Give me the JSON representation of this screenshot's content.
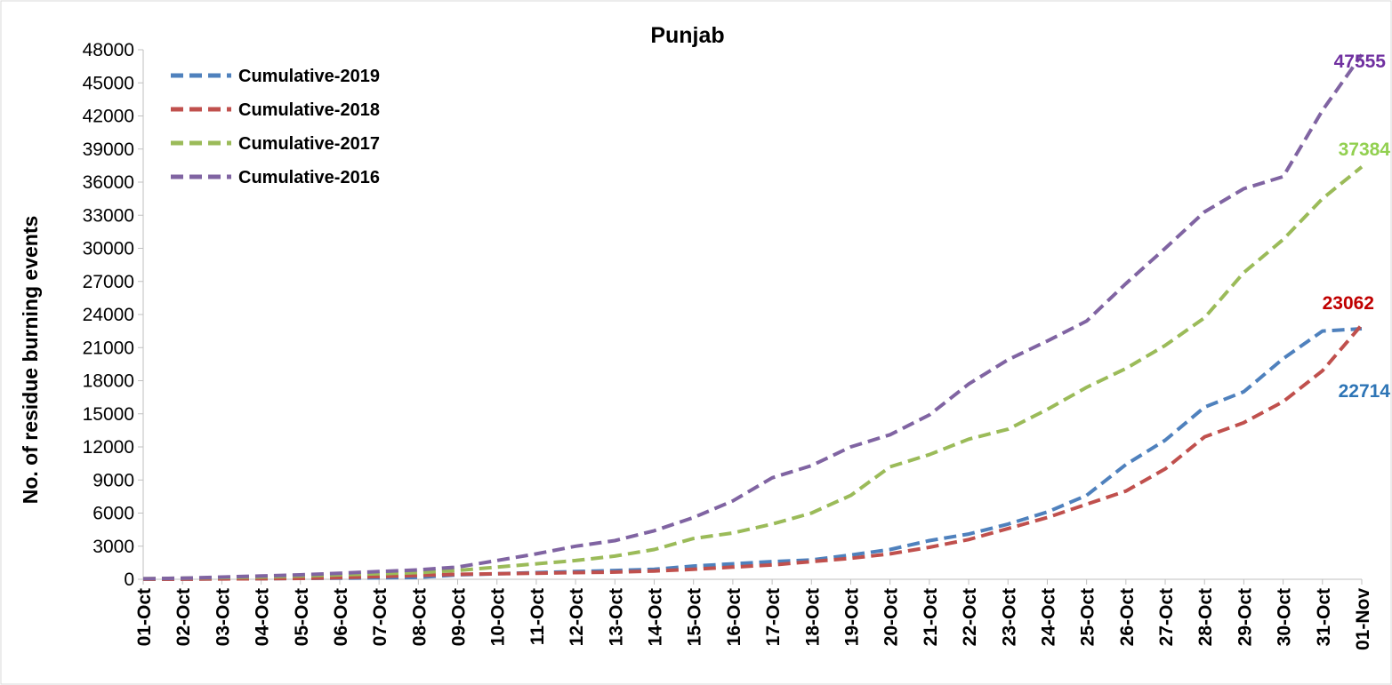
{
  "chart_data": {
    "type": "line",
    "title": "Punjab",
    "xlabel": "",
    "ylabel": "No. of residue burning events",
    "ylim": [
      0,
      48000
    ],
    "yticks": [
      0,
      3000,
      6000,
      9000,
      12000,
      15000,
      18000,
      21000,
      24000,
      27000,
      30000,
      33000,
      36000,
      39000,
      42000,
      45000,
      48000
    ],
    "categories": [
      "01-Oct",
      "02-Oct",
      "03-Oct",
      "04-Oct",
      "05-Oct",
      "06-Oct",
      "07-Oct",
      "08-Oct",
      "09-Oct",
      "10-Oct",
      "11-Oct",
      "12-Oct",
      "13-Oct",
      "14-Oct",
      "15-Oct",
      "16-Oct",
      "17-Oct",
      "18-Oct",
      "19-Oct",
      "20-Oct",
      "21-Oct",
      "22-Oct",
      "23-Oct",
      "24-Oct",
      "25-Oct",
      "26-Oct",
      "27-Oct",
      "28-Oct",
      "29-Oct",
      "30-Oct",
      "31-Oct",
      "01-Nov"
    ],
    "grid": false,
    "legend_position": "top-left",
    "series": [
      {
        "name": "Cumulative-2019",
        "color": "#4F81BD",
        "end_label": "22714",
        "end_label_color": "#2E75B6",
        "values": [
          0,
          20,
          40,
          60,
          80,
          100,
          130,
          170,
          400,
          500,
          600,
          700,
          800,
          900,
          1200,
          1400,
          1600,
          1750,
          2200,
          2700,
          3500,
          4100,
          5000,
          6100,
          7600,
          10400,
          12600,
          15600,
          17000,
          20000,
          22500,
          22714
        ]
      },
      {
        "name": "Cumulative-2018",
        "color": "#C0504D",
        "end_label": "23062",
        "end_label_color": "#C00000",
        "values": [
          0,
          10,
          30,
          50,
          80,
          150,
          250,
          350,
          450,
          500,
          550,
          600,
          650,
          750,
          900,
          1100,
          1300,
          1600,
          1900,
          2300,
          2900,
          3600,
          4600,
          5600,
          6800,
          8000,
          10000,
          12900,
          14200,
          16100,
          18900,
          23062
        ]
      },
      {
        "name": "Cumulative-2017",
        "color": "#9BBB59",
        "end_label": "37384",
        "end_label_color": "#92D050",
        "values": [
          50,
          100,
          150,
          200,
          300,
          400,
          500,
          600,
          800,
          1100,
          1400,
          1700,
          2100,
          2700,
          3700,
          4200,
          5000,
          6000,
          7600,
          10200,
          11300,
          12700,
          13600,
          15400,
          17400,
          19100,
          21200,
          23700,
          27800,
          30800,
          34500,
          37384
        ]
      },
      {
        "name": "Cumulative-2016",
        "color": "#8064A2",
        "end_label": "47555",
        "end_label_color": "#7030A0",
        "values": [
          50,
          100,
          200,
          300,
          400,
          550,
          700,
          850,
          1100,
          1700,
          2300,
          3000,
          3500,
          4400,
          5600,
          7100,
          9200,
          10300,
          12000,
          13100,
          14900,
          17700,
          19900,
          21600,
          23400,
          26800,
          30000,
          33300,
          35400,
          36500,
          42500,
          47555
        ]
      }
    ]
  }
}
